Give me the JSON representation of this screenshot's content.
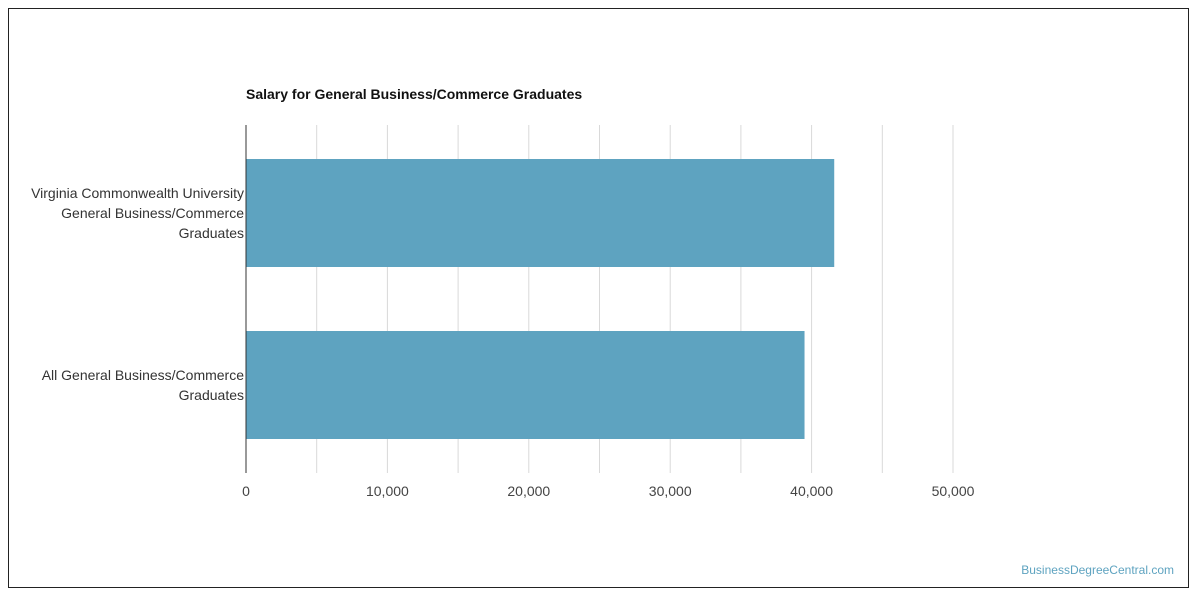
{
  "chart_data": {
    "type": "bar",
    "orientation": "horizontal",
    "title": "Salary for General Business/Commerce Graduates",
    "categories": [
      [
        "Virginia Commonwealth University",
        "General Business/Commerce",
        "Graduates"
      ],
      [
        "All General Business/Commerce",
        "Graduates"
      ]
    ],
    "values": [
      41600,
      39500
    ],
    "xlim": [
      0,
      50000
    ],
    "x_ticks": [
      0,
      10000,
      20000,
      30000,
      40000,
      50000
    ],
    "x_tick_labels": [
      "0",
      "10,000",
      "20,000",
      "30,000",
      "40,000",
      "50,000"
    ],
    "grid": true,
    "bar_color": "#5ea3c0",
    "grid_color": "#d9d9d9",
    "axis_color": "#333333"
  },
  "watermark": "BusinessDegreeCentral.com"
}
